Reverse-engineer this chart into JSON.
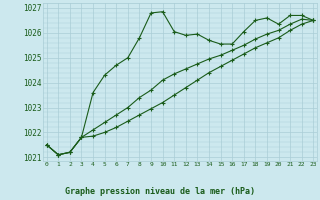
{
  "hours": [
    0,
    1,
    2,
    3,
    4,
    5,
    6,
    7,
    8,
    9,
    10,
    11,
    12,
    13,
    14,
    15,
    16,
    17,
    18,
    19,
    20,
    21,
    22,
    23
  ],
  "line1": [
    1021.5,
    1021.1,
    1021.2,
    1021.8,
    1023.6,
    1024.3,
    1024.7,
    1025.0,
    1025.8,
    1026.8,
    1026.85,
    1026.05,
    1025.9,
    1025.95,
    1025.7,
    1025.55,
    1025.55,
    1026.05,
    1026.5,
    1026.6,
    1026.35,
    1026.7,
    1026.7,
    1026.5
  ],
  "line2": [
    1021.5,
    1021.1,
    1021.2,
    1021.8,
    1022.1,
    1022.4,
    1022.7,
    1023.0,
    1023.4,
    1023.7,
    1024.1,
    1024.35,
    1024.55,
    1024.75,
    1024.95,
    1025.1,
    1025.3,
    1025.5,
    1025.75,
    1025.95,
    1026.1,
    1026.35,
    1026.55,
    1026.5
  ],
  "line3": [
    1021.5,
    1021.1,
    1021.2,
    1021.8,
    1021.85,
    1022.0,
    1022.2,
    1022.45,
    1022.7,
    1022.95,
    1023.2,
    1023.5,
    1023.8,
    1024.1,
    1024.4,
    1024.65,
    1024.9,
    1025.15,
    1025.4,
    1025.6,
    1025.8,
    1026.1,
    1026.35,
    1026.5
  ],
  "bg_color": "#cce8ee",
  "grid_color": "#aacdd6",
  "line_color": "#1a5c1a",
  "ylim_min": 1020.85,
  "ylim_max": 1027.2,
  "yticks": [
    1021,
    1022,
    1023,
    1024,
    1025,
    1026,
    1027
  ],
  "xlabel": "Graphe pression niveau de la mer (hPa)",
  "tick_color": "#1a5c1a",
  "xlabel_bg": "#2a6b2a",
  "xlabel_text_color": "#ffffff"
}
